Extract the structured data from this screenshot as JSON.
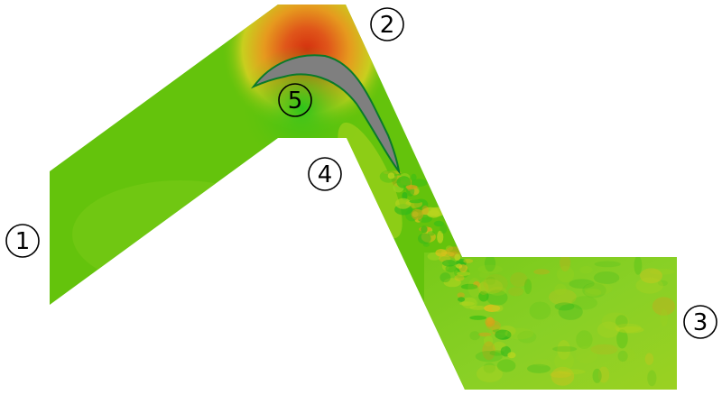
{
  "figure": {
    "colors": {
      "background": "#ffffff",
      "flow_base": "#62c20a",
      "flow_light": "#8fd22a",
      "flow_yellow": "#c8d61a",
      "hot_red": "#d83a10",
      "hot_orange": "#e87a12",
      "hot_yellow": "#e8d41e",
      "blade_fill": "#7f7f7f",
      "blade_edge": "#0a7a2a",
      "label_stroke": "#000000"
    },
    "labels": [
      {
        "id": "1",
        "text": "1"
      },
      {
        "id": "2",
        "text": "2"
      },
      {
        "id": "3",
        "text": "3"
      },
      {
        "id": "4",
        "text": "4"
      },
      {
        "id": "5",
        "text": "5"
      }
    ]
  }
}
